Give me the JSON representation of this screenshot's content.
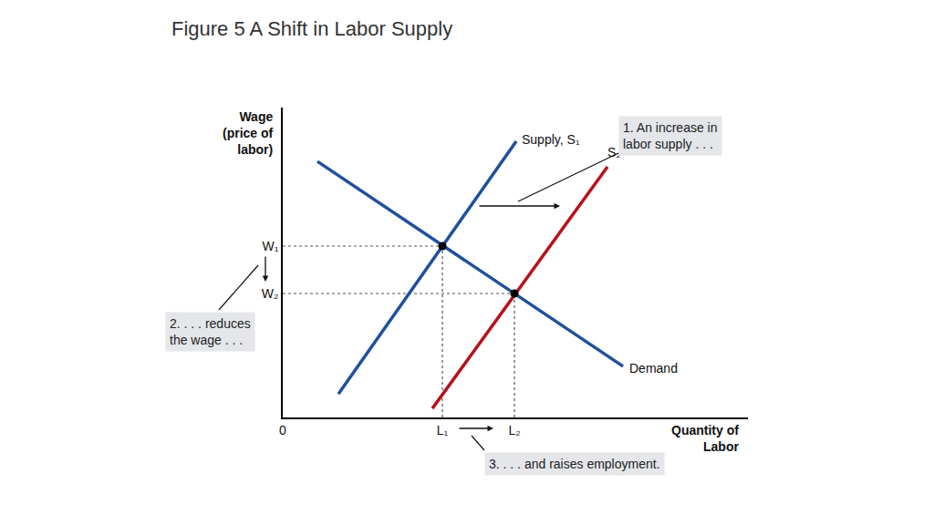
{
  "chart_data": {
    "type": "line",
    "title": "Figure 5 A Shift in Labor Supply",
    "x_label": [
      "Quantity of",
      "Labor"
    ],
    "y_label": [
      "Wage",
      "(price of",
      "labor)"
    ],
    "xlim": [
      0,
      102
    ],
    "ylim": [
      0,
      100
    ],
    "xticks": [
      0,
      {
        "value": 35,
        "label": "L₁"
      },
      {
        "value": 50.8,
        "label": "L₂"
      }
    ],
    "yticks": [
      {
        "value": 55.3,
        "label": "W₁"
      },
      {
        "value": 40,
        "label": "W₂"
      }
    ],
    "grid": false,
    "series": [
      {
        "name": "Demand",
        "color": "#1f4f9e",
        "x": [
          7.6,
          74.6
        ],
        "values": [
          82.6,
          16.5
        ]
      },
      {
        "name": "Supply, S₁",
        "color": "#1f4f9e",
        "x": [
          12.2,
          51.2
        ],
        "values": [
          7.6,
          89.1
        ]
      },
      {
        "name": "S₂",
        "color": "#b5121b",
        "x": [
          32.8,
          71.2
        ],
        "values": [
          2.9,
          80.9
        ]
      }
    ],
    "equilibria": {
      "x": [
        35,
        50.8
      ],
      "values": [
        55.3,
        40
      ]
    },
    "annotations": [
      {
        "text": [
          "1. An increase in",
          "labor supply . . ."
        ]
      },
      {
        "text": [
          "2. . . . reduces",
          "the wage . . ."
        ]
      },
      {
        "text": [
          "3. . . . and raises employment."
        ]
      }
    ]
  }
}
